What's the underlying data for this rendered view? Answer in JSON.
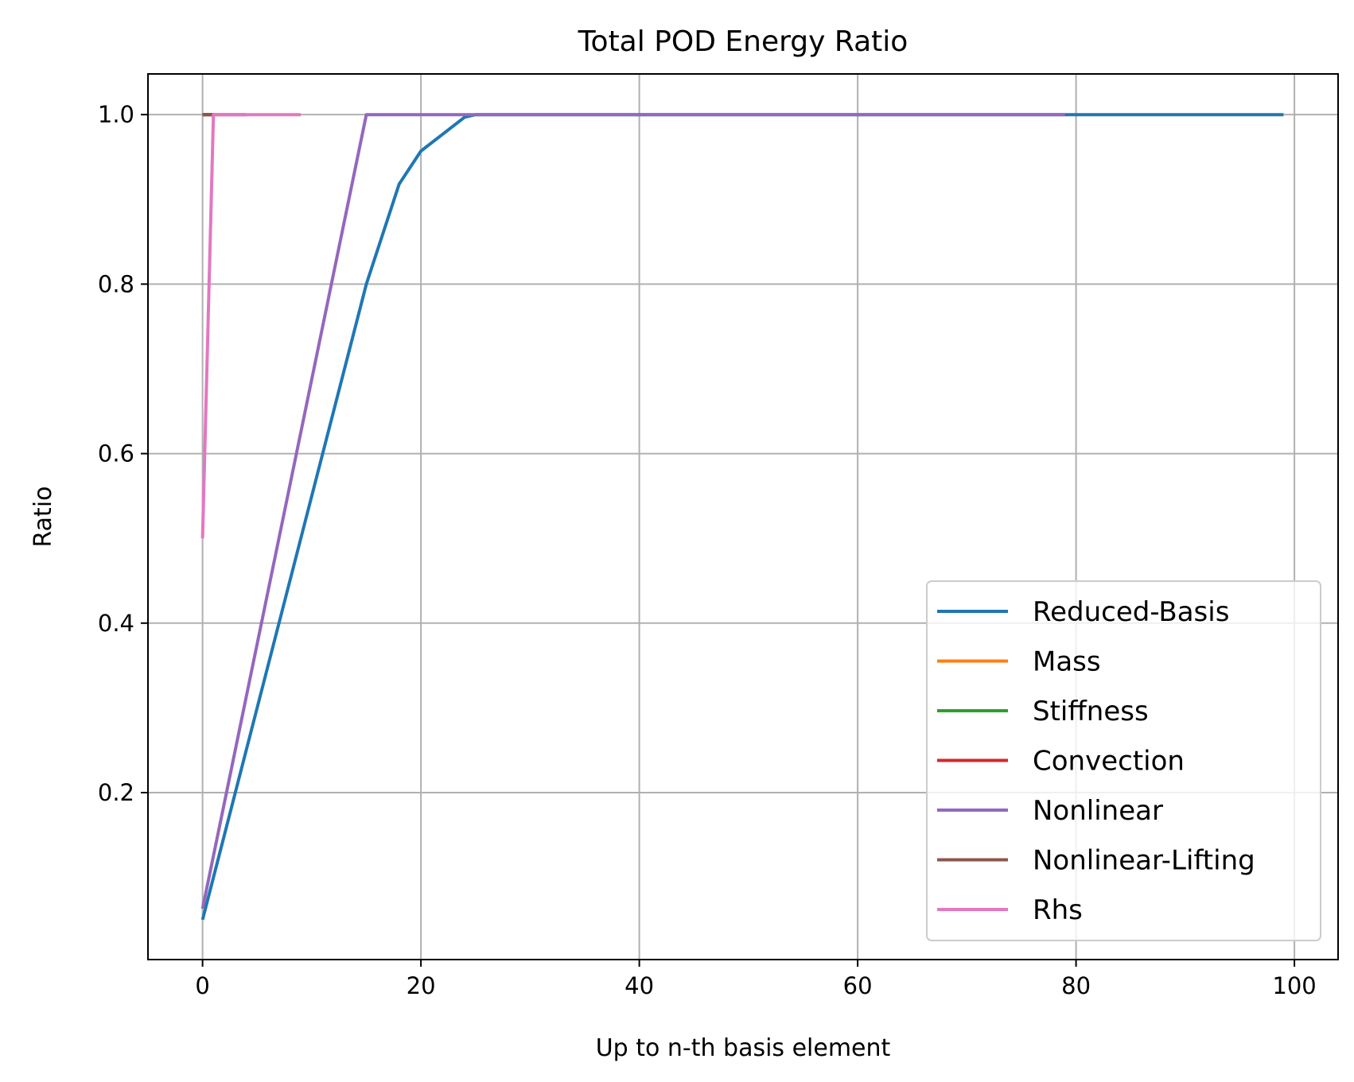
{
  "chart_data": {
    "type": "line",
    "title": "Total POD Energy Ratio",
    "xlabel": "Up to n-th basis element",
    "ylabel": "Ratio",
    "xlim": [
      -5,
      104
    ],
    "ylim": [
      0.003,
      1.048
    ],
    "xticks": [
      0,
      20,
      40,
      60,
      80,
      100
    ],
    "xtick_labels": [
      "0",
      "20",
      "40",
      "60",
      "80",
      "100"
    ],
    "yticks": [
      0.2,
      0.4,
      0.6,
      0.8,
      1.0
    ],
    "ytick_labels": [
      "0.2",
      "0.4",
      "0.6",
      "0.8",
      "1.0"
    ],
    "grid": true,
    "legend_position": "lower-right",
    "series": [
      {
        "name": "Reduced-Basis",
        "color": "#1f77b4",
        "x": [
          0,
          15,
          18,
          20,
          22,
          24,
          25,
          99
        ],
        "y": [
          0.05,
          0.8,
          0.918,
          0.957,
          0.977,
          0.997,
          1.0,
          1.0
        ]
      },
      {
        "name": "Mass",
        "color": "#ff7f0e",
        "x": [
          0,
          1
        ],
        "y": [
          1.0,
          1.0
        ]
      },
      {
        "name": "Stiffness",
        "color": "#2ca02c",
        "x": [
          0,
          1
        ],
        "y": [
          1.0,
          1.0
        ]
      },
      {
        "name": "Convection",
        "color": "#d62728",
        "x": [
          0,
          1
        ],
        "y": [
          1.0,
          1.0
        ]
      },
      {
        "name": "Nonlinear",
        "color": "#9467bd",
        "x": [
          0,
          15,
          79
        ],
        "y": [
          0.063,
          1.0,
          1.0
        ]
      },
      {
        "name": "Nonlinear-Lifting",
        "color": "#8c564b",
        "x": [
          0,
          4
        ],
        "y": [
          1.0,
          1.0
        ]
      },
      {
        "name": "Rhs",
        "color": "#e377c2",
        "x": [
          0,
          1,
          9
        ],
        "y": [
          0.5,
          1.0,
          1.0
        ]
      }
    ]
  }
}
